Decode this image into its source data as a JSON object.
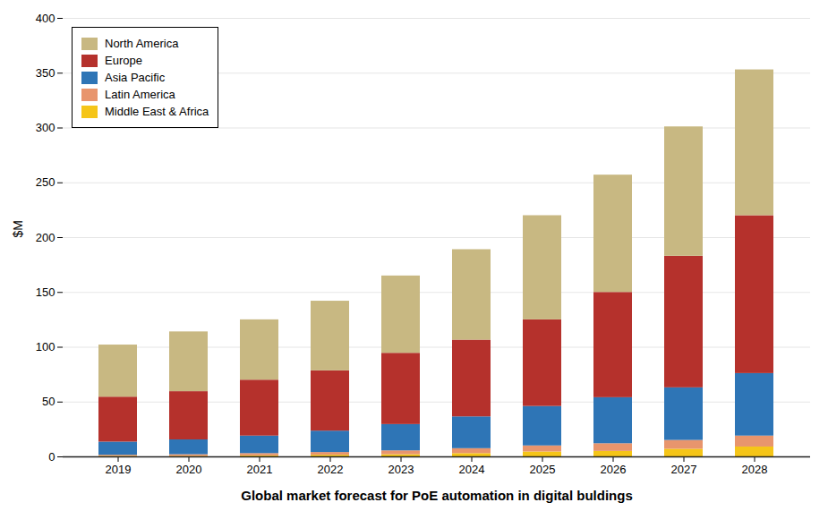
{
  "chart_data": {
    "type": "bar",
    "stacked": true,
    "xlabel": "Global market forecast for PoE automation in digital buldings",
    "ylabel": "$M",
    "categories": [
      "2019",
      "2020",
      "2021",
      "2022",
      "2023",
      "2024",
      "2025",
      "2026",
      "2027",
      "2028"
    ],
    "series": [
      {
        "name": "Middle East & Africa",
        "color": "#f5c518",
        "values": [
          0.5,
          0.5,
          1.0,
          1.5,
          2.0,
          3.0,
          4.5,
          5.0,
          7.0,
          9.0
        ]
      },
      {
        "name": "Latin America",
        "color": "#e8956d",
        "values": [
          1.0,
          1.5,
          2.0,
          2.5,
          3.5,
          4.5,
          5.5,
          7.0,
          8.0,
          10.0
        ]
      },
      {
        "name": "Asia Pacific",
        "color": "#2e75b6",
        "values": [
          12.0,
          13.5,
          16.0,
          19.5,
          24.0,
          29.0,
          36.0,
          42.0,
          48.0,
          57.0
        ]
      },
      {
        "name": "Europe",
        "color": "#b5312c",
        "values": [
          41.0,
          44.0,
          51.0,
          55.0,
          65.0,
          70.0,
          79.0,
          96.0,
          120.0,
          144.0
        ]
      },
      {
        "name": "North America",
        "color": "#c8b882",
        "values": [
          47.5,
          54.5,
          55.0,
          63.5,
          70.5,
          82.5,
          95.0,
          107.0,
          118.0,
          133.0
        ]
      }
    ],
    "ylim": [
      0,
      400
    ],
    "yticks": [
      0,
      50,
      100,
      150,
      200,
      250,
      300,
      350,
      400
    ],
    "grid": true,
    "legend": "upper left"
  }
}
